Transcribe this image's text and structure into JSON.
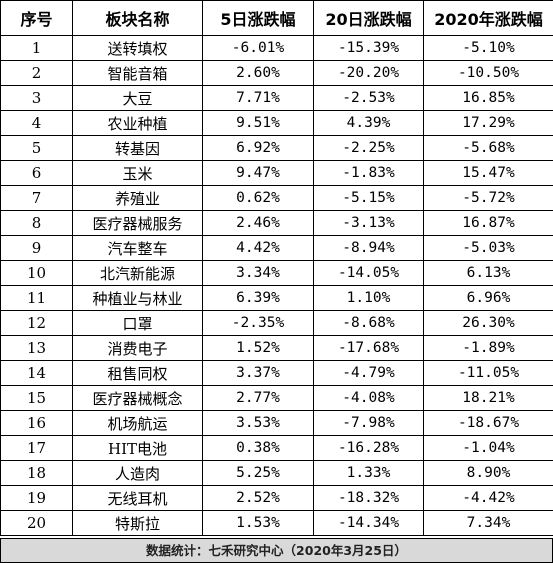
{
  "headers": {
    "idx": "序号",
    "name": "板块名称",
    "d5": "5日涨跌幅",
    "d20": "20日涨跌幅",
    "ytd": "2020年涨跌幅"
  },
  "rows": [
    {
      "idx": "1",
      "name": "送转填权",
      "d5": "-6.01%",
      "d20": "-15.39%",
      "ytd": "-5.10%"
    },
    {
      "idx": "2",
      "name": "智能音箱",
      "d5": "2.60%",
      "d20": "-20.20%",
      "ytd": "-10.50%"
    },
    {
      "idx": "3",
      "name": "大豆",
      "d5": "7.71%",
      "d20": "-2.53%",
      "ytd": "16.85%"
    },
    {
      "idx": "4",
      "name": "农业种植",
      "d5": "9.51%",
      "d20": "4.39%",
      "ytd": "17.29%"
    },
    {
      "idx": "5",
      "name": "转基因",
      "d5": "6.92%",
      "d20": "-2.25%",
      "ytd": "-5.68%"
    },
    {
      "idx": "6",
      "name": "玉米",
      "d5": "9.47%",
      "d20": "-1.83%",
      "ytd": "15.47%"
    },
    {
      "idx": "7",
      "name": "养殖业",
      "d5": "0.62%",
      "d20": "-5.15%",
      "ytd": "-5.72%"
    },
    {
      "idx": "8",
      "name": "医疗器械服务",
      "d5": "2.46%",
      "d20": "-3.13%",
      "ytd": "16.87%"
    },
    {
      "idx": "9",
      "name": "汽车整车",
      "d5": "4.42%",
      "d20": "-8.94%",
      "ytd": "-5.03%"
    },
    {
      "idx": "10",
      "name": "北汽新能源",
      "d5": "3.34%",
      "d20": "-14.05%",
      "ytd": "6.13%"
    },
    {
      "idx": "11",
      "name": "种植业与林业",
      "d5": "6.39%",
      "d20": "1.10%",
      "ytd": "6.96%"
    },
    {
      "idx": "12",
      "name": "口罩",
      "d5": "-2.35%",
      "d20": "-8.68%",
      "ytd": "26.30%"
    },
    {
      "idx": "13",
      "name": "消费电子",
      "d5": "1.52%",
      "d20": "-17.68%",
      "ytd": "-1.89%"
    },
    {
      "idx": "14",
      "name": "租售同权",
      "d5": "3.37%",
      "d20": "-4.79%",
      "ytd": "-11.05%"
    },
    {
      "idx": "15",
      "name": "医疗器械概念",
      "d5": "2.77%",
      "d20": "-4.08%",
      "ytd": "18.21%"
    },
    {
      "idx": "16",
      "name": "机场航运",
      "d5": "3.53%",
      "d20": "-7.98%",
      "ytd": "-18.67%"
    },
    {
      "idx": "17",
      "name": "HIT电池",
      "d5": "0.38%",
      "d20": "-16.28%",
      "ytd": "-1.04%"
    },
    {
      "idx": "18",
      "name": "人造肉",
      "d5": "5.25%",
      "d20": "1.33%",
      "ytd": "8.90%"
    },
    {
      "idx": "19",
      "name": "无线耳机",
      "d5": "2.52%",
      "d20": "-18.32%",
      "ytd": "-4.42%"
    },
    {
      "idx": "20",
      "name": "特斯拉",
      "d5": "1.53%",
      "d20": "-14.34%",
      "ytd": "7.34%"
    }
  ],
  "footer": "数据统计：七禾研究中心（2020年3月25日）",
  "colors": {
    "footer_bg": "#d9d9d9",
    "border": "#000000"
  }
}
